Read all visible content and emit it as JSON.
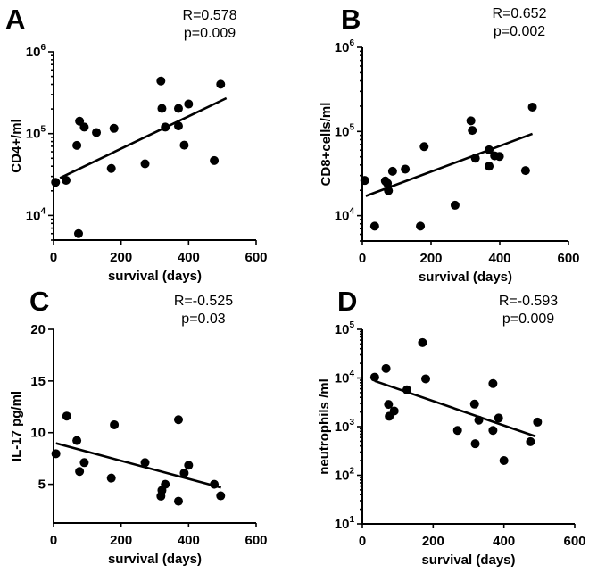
{
  "chart_data": [
    {
      "type": "scatter",
      "panel_letter": "A",
      "xlabel": "survival (days)",
      "ylabel": "CD4+/ml",
      "yscale": "log",
      "xlim": [
        0,
        600
      ],
      "ylim": [
        5000,
        1000000
      ],
      "xticks": [
        0,
        200,
        400,
        600
      ],
      "xtick_labels": [
        "0",
        "200",
        "400",
        "600"
      ],
      "yticks": [
        10000,
        100000,
        1000000
      ],
      "ytick_labels": [
        {
          "base": "10",
          "exp": "4"
        },
        {
          "base": "10",
          "exp": "5"
        },
        {
          "base": "10",
          "exp": "6"
        }
      ],
      "annotation": [
        "R=0.578",
        "p=0.009"
      ],
      "points": [
        [
          6,
          25400
        ],
        [
          37,
          26900
        ],
        [
          74,
          6000
        ],
        [
          69,
          71800
        ],
        [
          77,
          142000
        ],
        [
          91,
          120000
        ],
        [
          127,
          103000
        ],
        [
          171,
          37500
        ],
        [
          179,
          116000
        ],
        [
          271,
          42800
        ],
        [
          318,
          440000
        ],
        [
          321,
          203000
        ],
        [
          331,
          120000
        ],
        [
          370,
          203000
        ],
        [
          370,
          124000
        ],
        [
          387,
          72300
        ],
        [
          400,
          230000
        ],
        [
          476,
          46900
        ],
        [
          495,
          401000
        ]
      ],
      "fit_line": [
        [
          19,
          28700
        ],
        [
          512,
          271000
        ]
      ]
    },
    {
      "type": "scatter",
      "panel_letter": "B",
      "xlabel": "survival (days)",
      "ylabel": "CD8+cells/ml",
      "yscale": "log",
      "xlim": [
        0,
        600
      ],
      "ylim": [
        5000,
        1000000
      ],
      "xticks": [
        0,
        200,
        400,
        600
      ],
      "xtick_labels": [
        "0",
        "200",
        "400",
        "600"
      ],
      "yticks": [
        10000,
        100000,
        1000000
      ],
      "ytick_labels": [
        {
          "base": "10",
          "exp": "4"
        },
        {
          "base": "10",
          "exp": "5"
        },
        {
          "base": "10",
          "exp": "6"
        }
      ],
      "annotation": [
        "R=0.652",
        "p=0.002"
      ],
      "points": [
        [
          7,
          26200
        ],
        [
          36,
          7500
        ],
        [
          67,
          25800
        ],
        [
          73,
          24200
        ],
        [
          76,
          19800
        ],
        [
          88,
          33700
        ],
        [
          125,
          35700
        ],
        [
          169,
          7500
        ],
        [
          180,
          66100
        ],
        [
          270,
          13300
        ],
        [
          316,
          134000
        ],
        [
          320,
          103000
        ],
        [
          329,
          48200
        ],
        [
          369,
          60500
        ],
        [
          369,
          38700
        ],
        [
          385,
          51400
        ],
        [
          399,
          50600
        ],
        [
          475,
          34300
        ],
        [
          495,
          195000
        ]
      ],
      "fit_line": [
        [
          10,
          17100
        ],
        [
          495,
          93800
        ]
      ]
    },
    {
      "type": "scatter",
      "panel_letter": "C",
      "xlabel": "survival (days)",
      "ylabel": "IL-17 pg/ml",
      "yscale": "linear",
      "xlim": [
        0,
        600
      ],
      "ylim": [
        1.25,
        20
      ],
      "xticks": [
        0,
        200,
        400,
        600
      ],
      "xtick_labels": [
        "0",
        "200",
        "400",
        "600"
      ],
      "yticks": [
        5,
        10,
        15,
        20
      ],
      "ytick_labels": [
        "5",
        "10",
        "15",
        "20"
      ],
      "annotation": [
        "R=-0.525",
        "p=0.03"
      ],
      "points": [
        [
          7,
          7.96
        ],
        [
          39,
          11.6
        ],
        [
          69,
          9.23
        ],
        [
          77,
          6.24
        ],
        [
          91,
          7.1
        ],
        [
          171,
          5.6
        ],
        [
          180,
          10.76
        ],
        [
          271,
          7.1
        ],
        [
          318,
          3.85
        ],
        [
          321,
          4.42
        ],
        [
          331,
          5.0
        ],
        [
          370,
          11.25
        ],
        [
          370,
          3.36
        ],
        [
          387,
          6.09
        ],
        [
          400,
          6.84
        ],
        [
          476,
          5.0
        ],
        [
          495,
          3.88
        ]
      ],
      "fit_line": [
        [
          7,
          8.97
        ],
        [
          496,
          4.68
        ]
      ]
    },
    {
      "type": "scatter",
      "panel_letter": "D",
      "xlabel": "survival (days)",
      "ylabel": "neutrophils /ml",
      "yscale": "log",
      "xlim": [
        0,
        600
      ],
      "ylim": [
        10,
        100000
      ],
      "xticks": [
        0,
        200,
        400,
        600
      ],
      "xtick_labels": [
        "0",
        "200",
        "400",
        "600"
      ],
      "yticks": [
        10,
        100,
        1000,
        10000,
        100000
      ],
      "ytick_labels": [
        {
          "base": "10",
          "exp": "1"
        },
        {
          "base": "10",
          "exp": "2"
        },
        {
          "base": "10",
          "exp": "3"
        },
        {
          "base": "10",
          "exp": "4"
        },
        {
          "base": "10",
          "exp": "5"
        }
      ],
      "annotation": [
        "R=-0.593",
        "p=0.009"
      ],
      "points": [
        [
          35,
          10400
        ],
        [
          67,
          15700
        ],
        [
          74,
          2860
        ],
        [
          76,
          1630
        ],
        [
          90,
          2100
        ],
        [
          126,
          5700
        ],
        [
          170,
          53300
        ],
        [
          179,
          9600
        ],
        [
          269,
          835
        ],
        [
          317,
          2900
        ],
        [
          319,
          445
        ],
        [
          329,
          1360
        ],
        [
          369,
          7660
        ],
        [
          369,
          835
        ],
        [
          385,
          1500
        ],
        [
          400,
          201
        ],
        [
          475,
          490
        ],
        [
          495,
          1240
        ]
      ],
      "fit_line": [
        [
          35,
          8690
        ],
        [
          489,
          631
        ]
      ]
    }
  ]
}
